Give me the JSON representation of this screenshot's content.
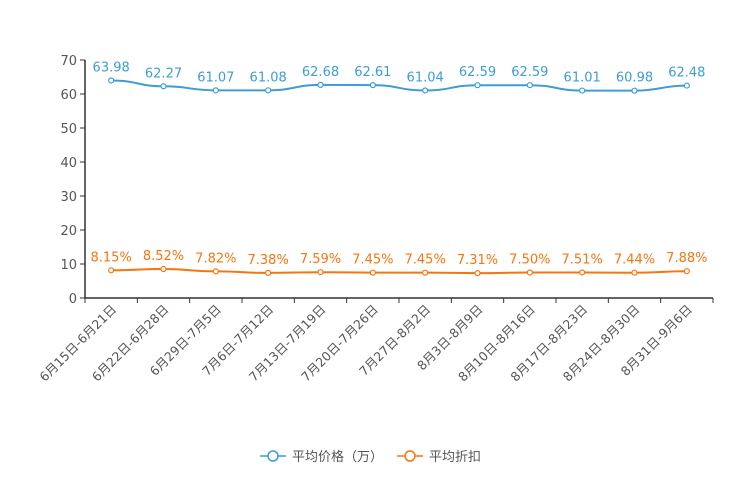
{
  "chart_data": {
    "type": "line",
    "categories": [
      "6月15日-6月21日",
      "6月22日-6月28日",
      "6月29日-7月5日",
      "7月6日-7月12日",
      "7月13日-7月19日",
      "7月20日-7月26日",
      "7月27日-8月2日",
      "8月3日-8月9日",
      "8月10日-8月16日",
      "8月17日-8月23日",
      "8月24日-8月30日",
      "8月31日-9月6日"
    ],
    "series": [
      {
        "name": "平均价格（万）",
        "color": "#3d9dd4",
        "values": [
          63.98,
          62.27,
          61.07,
          61.08,
          62.68,
          62.61,
          61.04,
          62.59,
          62.59,
          61.01,
          60.98,
          62.48
        ],
        "labels": [
          "63.98",
          "62.27",
          "61.07",
          "61.08",
          "62.68",
          "62.61",
          "61.04",
          "62.59",
          "62.59",
          "61.01",
          "60.98",
          "62.48"
        ]
      },
      {
        "name": "平均折扣",
        "color": "#f7750f",
        "values": [
          8.15,
          8.52,
          7.82,
          7.38,
          7.59,
          7.45,
          7.45,
          7.31,
          7.5,
          7.51,
          7.44,
          7.88
        ],
        "labels": [
          "8.15%",
          "8.52%",
          "7.82%",
          "7.38%",
          "7.59%",
          "7.45%",
          "7.45%",
          "7.31%",
          "7.50%",
          "7.51%",
          "7.44%",
          "7.88%"
        ]
      }
    ],
    "yticks": [
      "0",
      "10",
      "20",
      "30",
      "40",
      "50",
      "60",
      "70"
    ],
    "ylim": [
      0,
      70
    ],
    "legend": "bottom-center",
    "grid": false
  }
}
